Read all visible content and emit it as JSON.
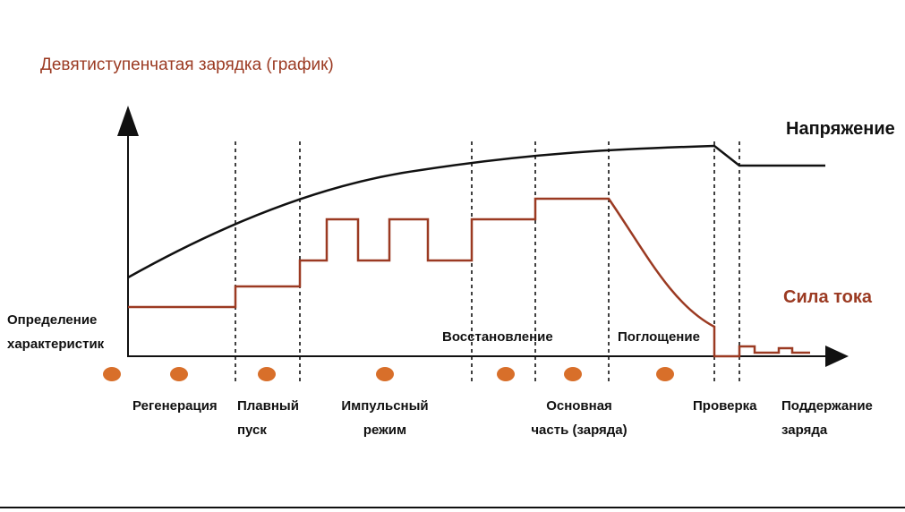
{
  "title": "Девятиступенчатая зарядка (график)",
  "curves": {
    "voltage": "Напряжение",
    "current": "Сила тока"
  },
  "stages": [
    {
      "lines": [
        "Определение",
        "характеристик"
      ]
    },
    {
      "lines": [
        "Регенерация"
      ]
    },
    {
      "lines": [
        "Плавный",
        "пуск"
      ]
    },
    {
      "lines": [
        "Импульсный",
        "режим"
      ]
    },
    {
      "lines": [
        "Восстановление"
      ]
    },
    {
      "lines": [
        "Основная",
        "часть (заряда)"
      ]
    },
    {
      "lines": [
        "Поглощение"
      ]
    },
    {
      "lines": [
        "Проверка"
      ]
    },
    {
      "lines": [
        "Поддержание",
        "заряда"
      ]
    }
  ]
}
